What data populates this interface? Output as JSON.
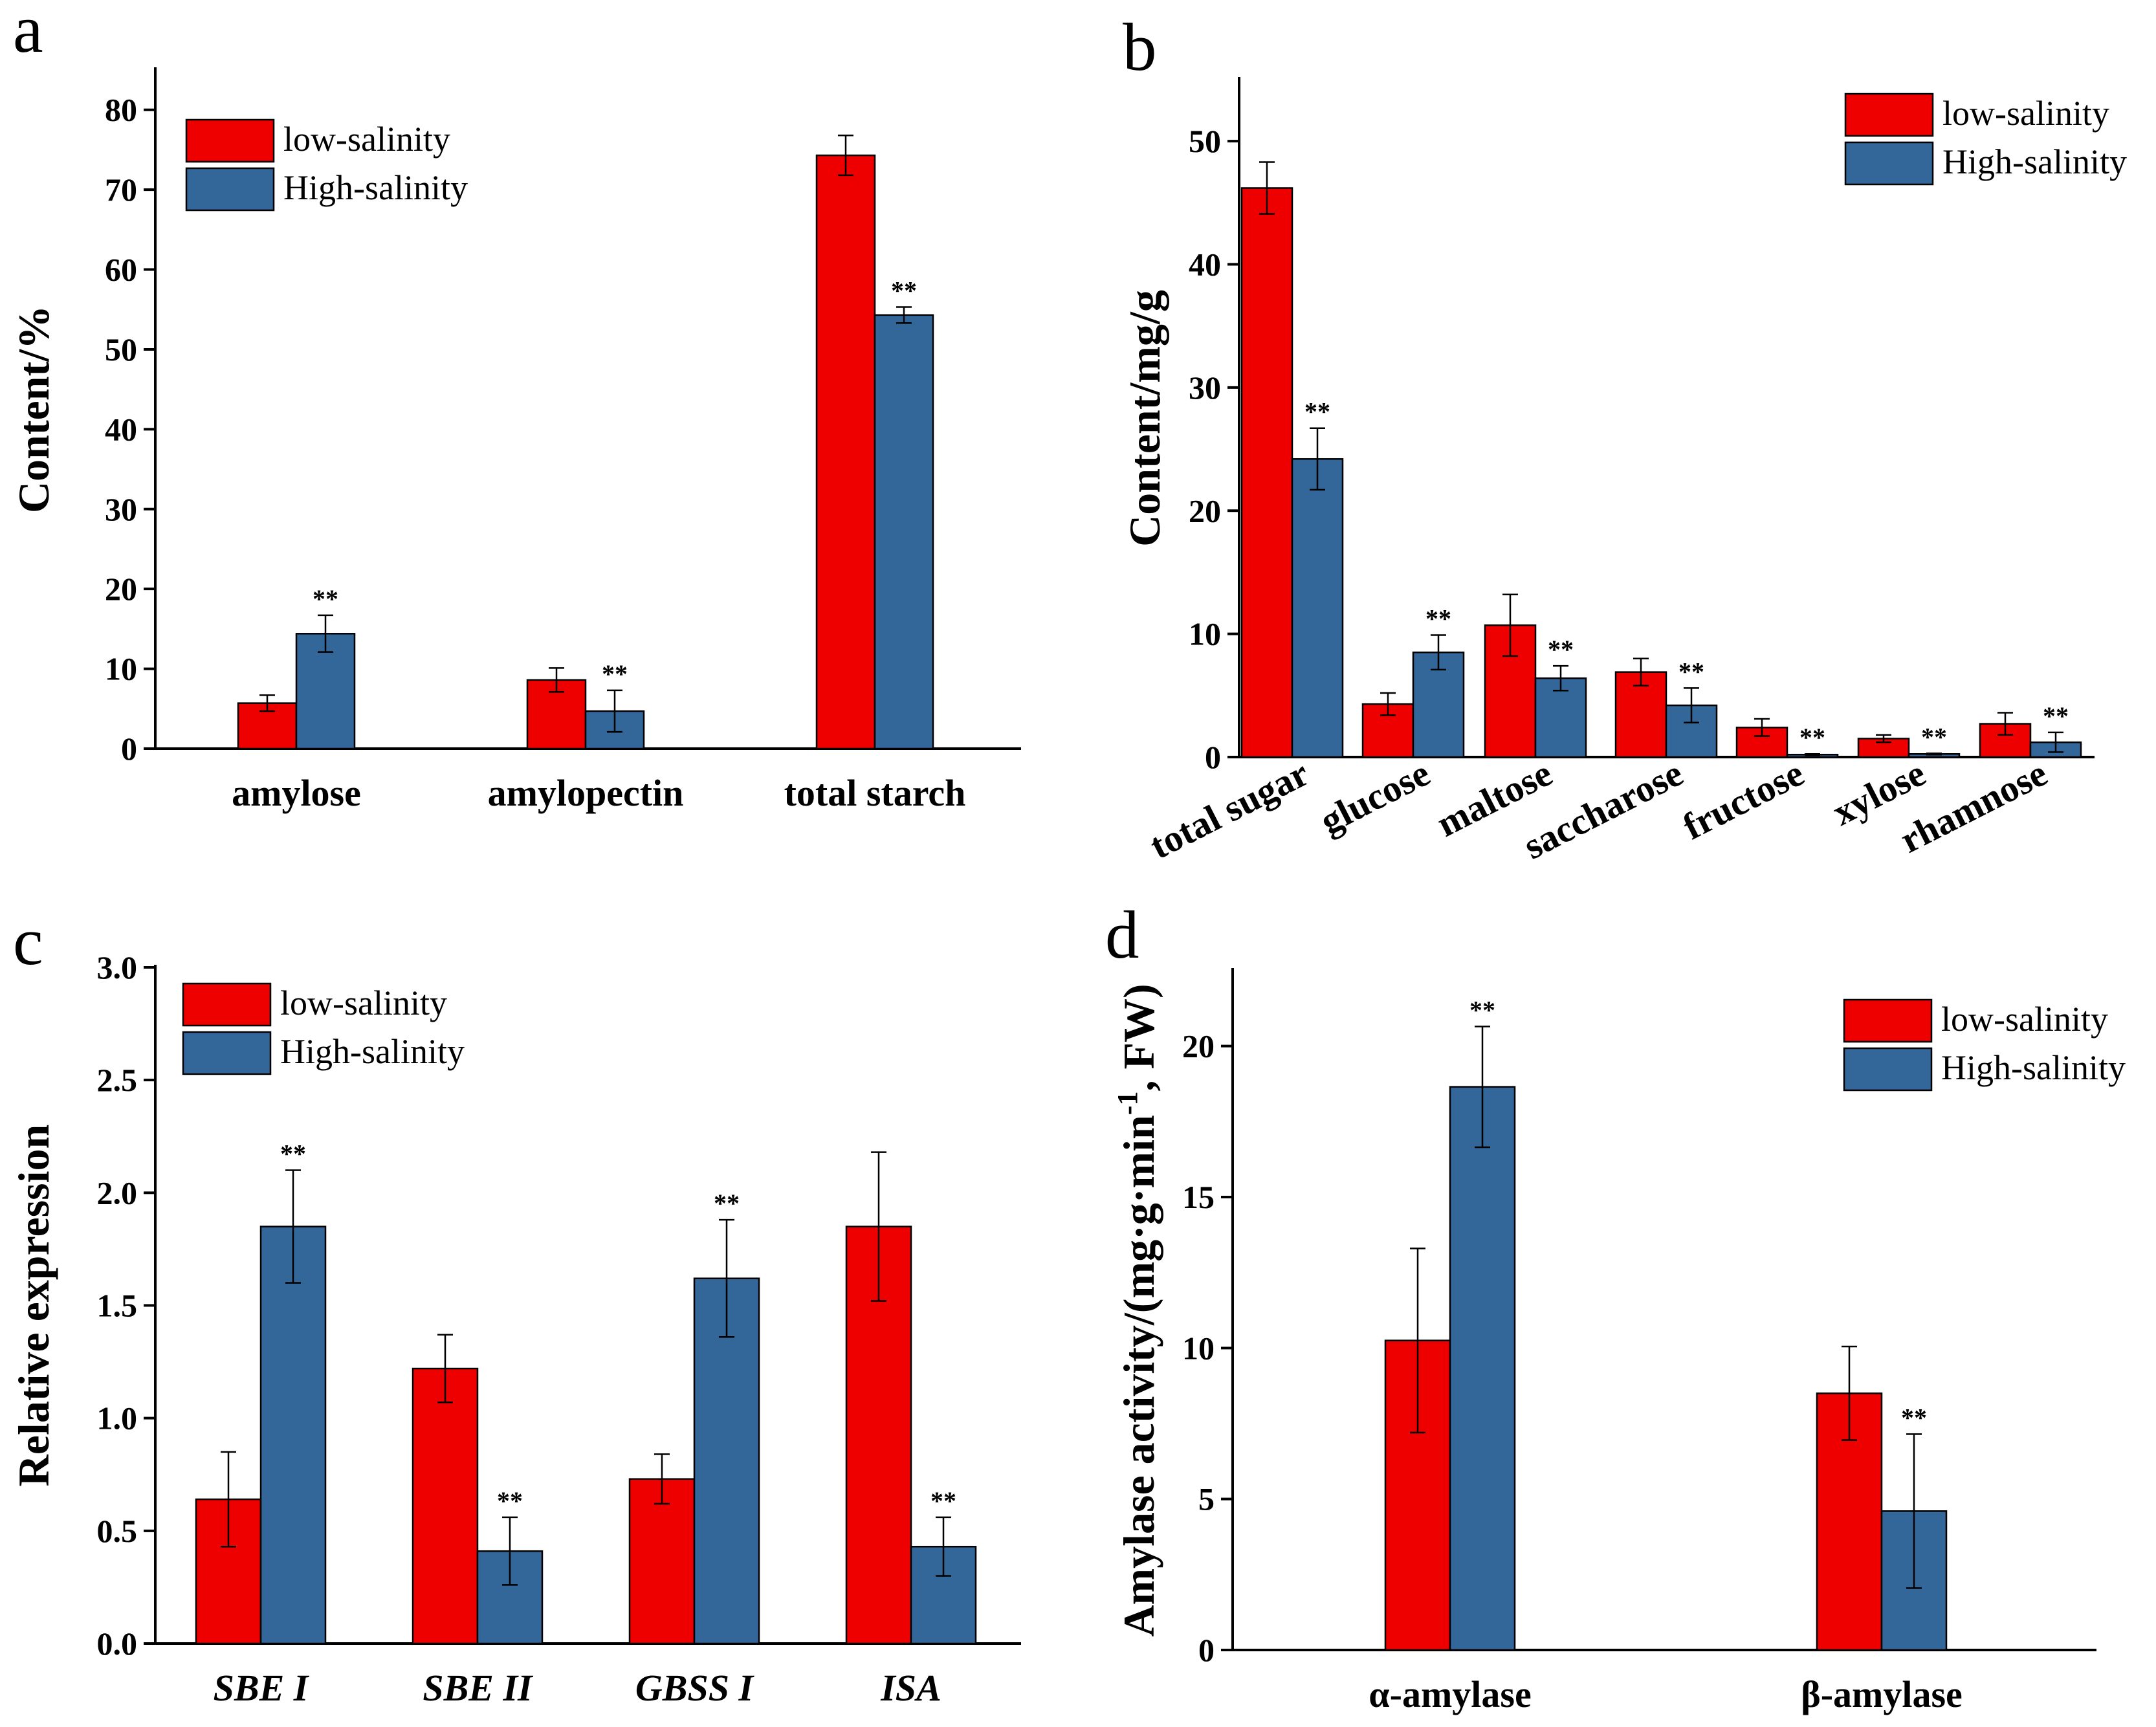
{
  "colors": {
    "low": "#ee0000",
    "high": "#336699",
    "axis": "#000000"
  },
  "chart_data": [
    {
      "id": "a",
      "panel_label": "a",
      "type": "bar",
      "ylabel": "Content/%",
      "ylim": [
        0,
        85
      ],
      "yticks": [
        0,
        10,
        20,
        30,
        40,
        50,
        60,
        70,
        80
      ],
      "categories": [
        "amylose",
        "amylopectin",
        "total starch"
      ],
      "italic_categories": false,
      "series": [
        {
          "name": "low-salinity",
          "values": [
            5.7,
            8.6,
            74.3
          ],
          "errors": [
            1.0,
            1.5,
            2.5
          ]
        },
        {
          "name": "High-salinity",
          "values": [
            14.4,
            4.7,
            54.3
          ],
          "errors": [
            2.3,
            2.6,
            1.0
          ]
        }
      ],
      "annotations": [
        {
          "category": 0,
          "series": 1,
          "text": "**"
        },
        {
          "category": 1,
          "series": 1,
          "text": "**"
        },
        {
          "category": 2,
          "series": 1,
          "text": "**"
        }
      ],
      "legend": {
        "position": "top-left",
        "entries": [
          "low-salinity",
          "High-salinity"
        ]
      }
    },
    {
      "id": "b",
      "panel_label": "b",
      "type": "bar",
      "ylabel": "Content/mg/g",
      "ylim": [
        0,
        55
      ],
      "yticks": [
        0,
        10,
        20,
        30,
        40,
        50
      ],
      "categories": [
        "total sugar",
        "glucose",
        "maltose",
        "saccharose",
        "fructose",
        "xylose",
        "rhamnose"
      ],
      "italic_categories": false,
      "rotated_categories": true,
      "series": [
        {
          "name": "low-salinity",
          "values": [
            46.2,
            4.3,
            10.7,
            6.9,
            2.4,
            1.5,
            2.7
          ],
          "errors": [
            2.1,
            0.9,
            2.5,
            1.1,
            0.7,
            0.3,
            0.9
          ]
        },
        {
          "name": "High-salinity",
          "values": [
            24.2,
            8.5,
            6.4,
            4.2,
            0.2,
            0.25,
            1.2
          ],
          "errors": [
            2.5,
            1.4,
            1.0,
            1.4,
            0.05,
            0.05,
            0.8
          ]
        }
      ],
      "annotations": [
        {
          "category": 0,
          "series": 1,
          "text": "**"
        },
        {
          "category": 1,
          "series": 1,
          "text": "**"
        },
        {
          "category": 2,
          "series": 1,
          "text": "**"
        },
        {
          "category": 3,
          "series": 1,
          "text": "**"
        },
        {
          "category": 4,
          "series": 1,
          "text": "**"
        },
        {
          "category": 5,
          "series": 1,
          "text": "**"
        },
        {
          "category": 6,
          "series": 1,
          "text": "**"
        }
      ],
      "legend": {
        "position": "top-right",
        "entries": [
          "low-salinity",
          "High-salinity"
        ]
      }
    },
    {
      "id": "c",
      "panel_label": "c",
      "type": "bar",
      "ylabel": "Relative expression",
      "ylim": [
        0,
        3.0
      ],
      "yticks": [
        "0.0",
        "0.5",
        "1.0",
        "1.5",
        "2.0",
        "2.5",
        "3.0"
      ],
      "categories": [
        "SBE I",
        "SBE II",
        "GBSS I",
        "ISA"
      ],
      "italic_categories": true,
      "series": [
        {
          "name": "low-salinity",
          "values": [
            0.64,
            1.22,
            0.73,
            1.85
          ],
          "errors": [
            0.21,
            0.15,
            0.11,
            0.33
          ]
        },
        {
          "name": "High-salinity",
          "values": [
            1.85,
            0.41,
            1.62,
            0.43
          ],
          "errors": [
            0.25,
            0.15,
            0.26,
            0.13
          ]
        }
      ],
      "annotations": [
        {
          "category": 0,
          "series": 1,
          "text": "**"
        },
        {
          "category": 1,
          "series": 1,
          "text": "**"
        },
        {
          "category": 2,
          "series": 1,
          "text": "**"
        },
        {
          "category": 3,
          "series": 1,
          "text": "**"
        }
      ],
      "legend": {
        "position": "top-left",
        "entries": [
          "low-salinity",
          "High-salinity"
        ]
      }
    },
    {
      "id": "d",
      "panel_label": "d",
      "type": "bar",
      "ylabel": "Amylase activity/(mg·g·min",
      "ylabel_sup": "-1",
      "ylabel_tail": ", FW)",
      "ylim": [
        0,
        22.5
      ],
      "yticks": [
        0,
        5,
        10,
        15,
        20
      ],
      "categories": [
        "α-amylase",
        "β-amylase"
      ],
      "italic_categories": false,
      "series": [
        {
          "name": "low-salinity",
          "values": [
            10.25,
            8.5
          ],
          "errors": [
            3.05,
            1.55
          ]
        },
        {
          "name": "High-salinity",
          "values": [
            18.65,
            4.6
          ],
          "errors": [
            2.0,
            2.55
          ]
        }
      ],
      "annotations": [
        {
          "category": 0,
          "series": 1,
          "text": "**"
        },
        {
          "category": 1,
          "series": 1,
          "text": "**"
        }
      ],
      "legend": {
        "position": "top-right",
        "entries": [
          "low-salinity",
          "High-salinity"
        ]
      }
    }
  ]
}
